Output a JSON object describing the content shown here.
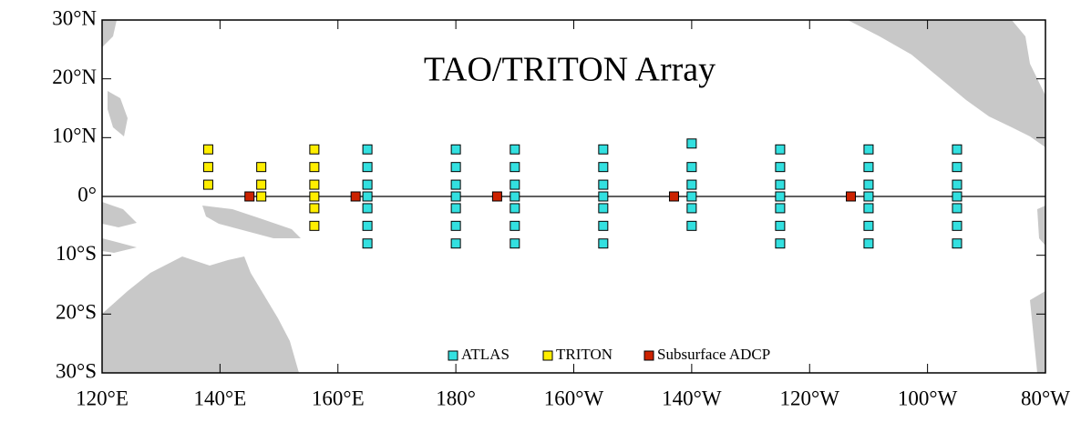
{
  "chart_data": {
    "type": "scatter",
    "title": "TAO/TRITON Array",
    "xlim": [
      120,
      280
    ],
    "ylim": [
      -30,
      30
    ],
    "xticks": [
      {
        "value": 120,
        "label": "120°E"
      },
      {
        "value": 140,
        "label": "140°E"
      },
      {
        "value": 160,
        "label": "160°E"
      },
      {
        "value": 180,
        "label": "180°"
      },
      {
        "value": 200,
        "label": "160°W"
      },
      {
        "value": 220,
        "label": "140°W"
      },
      {
        "value": 240,
        "label": "120°W"
      },
      {
        "value": 260,
        "label": "100°W"
      },
      {
        "value": 280,
        "label": "80°W"
      }
    ],
    "yticks": [
      {
        "value": -30,
        "label": "30°S"
      },
      {
        "value": -20,
        "label": "20°S"
      },
      {
        "value": -10,
        "label": "10°S"
      },
      {
        "value": 0,
        "label": "0°"
      },
      {
        "value": 10,
        "label": "10°N"
      },
      {
        "value": 20,
        "label": "20°N"
      },
      {
        "value": 30,
        "label": "30°N"
      }
    ],
    "series": [
      {
        "name": "ATLAS",
        "color": "#33e0e0",
        "x": [
          165,
          165,
          165,
          165,
          165,
          165,
          165,
          180,
          180,
          180,
          180,
          180,
          180,
          180,
          190,
          190,
          190,
          190,
          190,
          190,
          190,
          205,
          205,
          205,
          205,
          205,
          205,
          205,
          220,
          220,
          220,
          220,
          220,
          220,
          235,
          235,
          235,
          235,
          235,
          235,
          235,
          250,
          250,
          250,
          250,
          250,
          250,
          250,
          265,
          265,
          265,
          265,
          265,
          265,
          265
        ],
        "values": [
          8,
          5,
          2,
          0,
          -2,
          -5,
          -8,
          8,
          5,
          2,
          0,
          -2,
          -5,
          -8,
          8,
          5,
          2,
          0,
          -2,
          -5,
          -8,
          8,
          5,
          2,
          0,
          -2,
          -5,
          -8,
          9,
          5,
          2,
          0,
          -2,
          -5,
          8,
          5,
          2,
          0,
          -2,
          -5,
          -8,
          8,
          5,
          2,
          0,
          -2,
          -5,
          -8,
          8,
          5,
          2,
          0,
          -2,
          -5,
          -8
        ]
      },
      {
        "name": "TRITON",
        "color": "#ffee00",
        "x": [
          138,
          138,
          138,
          147,
          147,
          147,
          156,
          156,
          156,
          156,
          156,
          156
        ],
        "values": [
          8,
          5,
          2,
          5,
          2,
          0,
          8,
          5,
          2,
          0,
          -2,
          -5
        ]
      },
      {
        "name": "Subsurface ADCP",
        "color": "#cc2200",
        "x": [
          145,
          163,
          187,
          217,
          247
        ],
        "values": [
          0,
          0,
          0,
          0,
          0
        ]
      }
    ]
  }
}
